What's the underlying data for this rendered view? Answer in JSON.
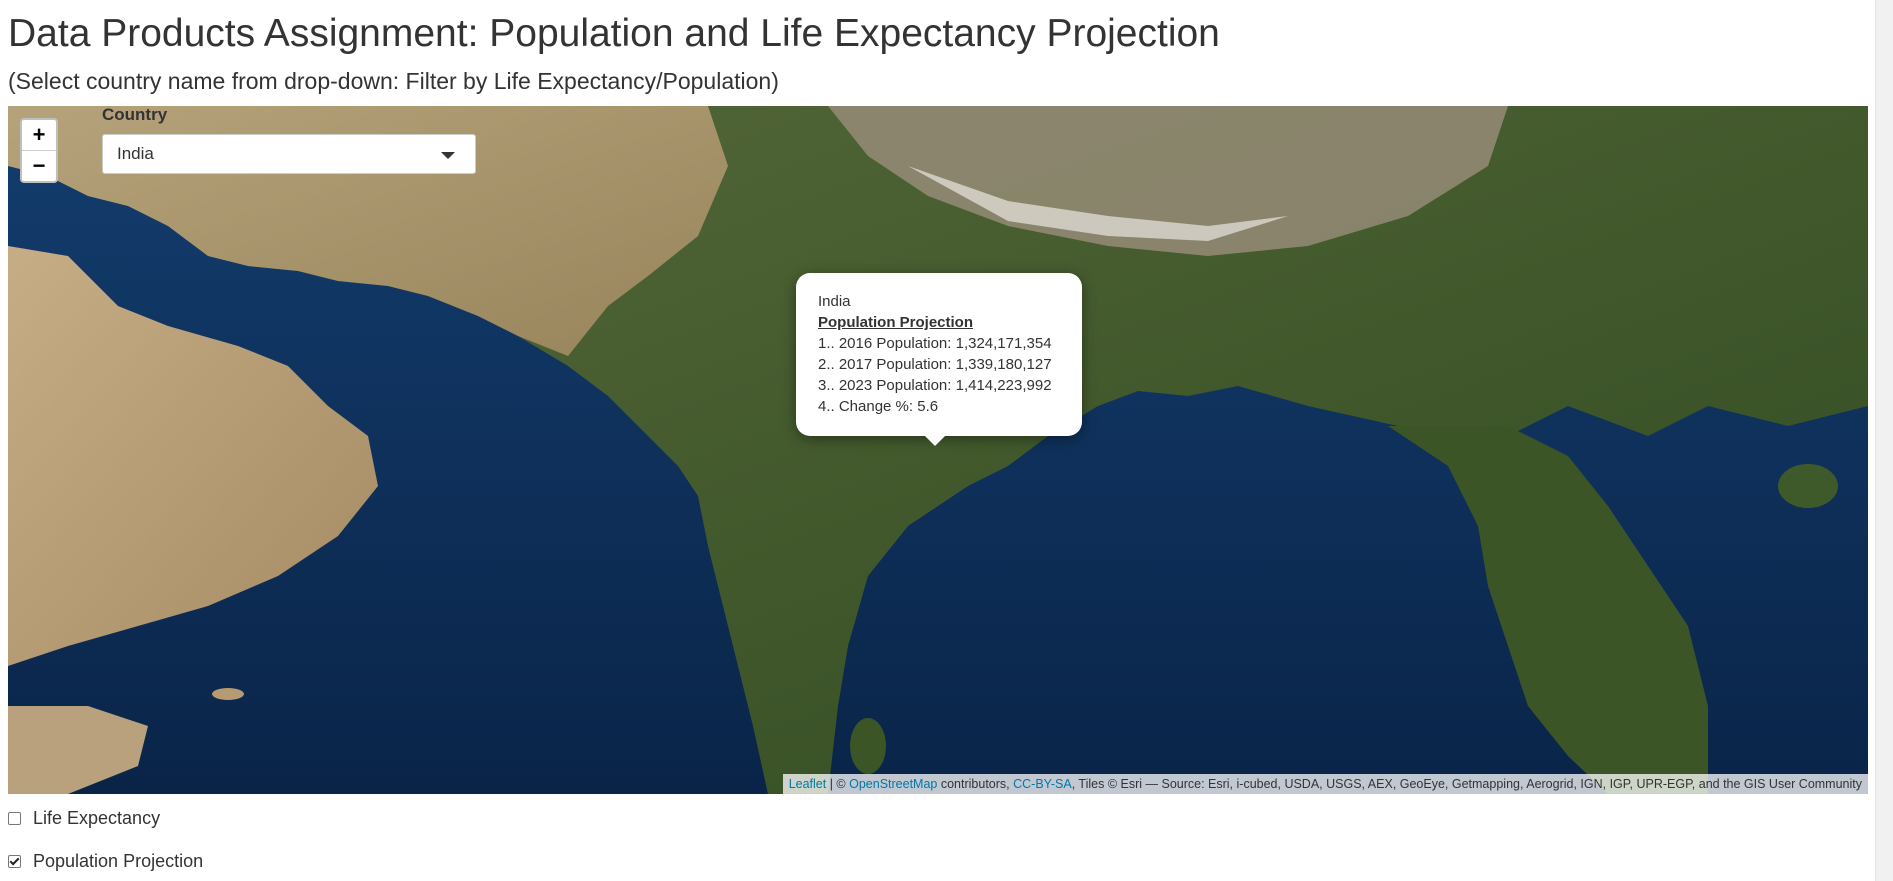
{
  "page": {
    "title": "Data Products Assignment: Population and Life Expectancy Projection",
    "subtitle": "(Select country name from drop-down: Filter by Life Expectancy/Population)"
  },
  "map": {
    "zoom_in": "+",
    "zoom_out": "−",
    "country_label": "Country",
    "country_selected": "India",
    "popup": {
      "country": "India",
      "heading": "Population Projection ",
      "lines": [
        "1.. 2016 Population: 1,324,171,354",
        "2.. 2017 Population: 1,339,180,127",
        "3.. 2023 Population: 1,414,223,992",
        "4.. Change %: 5.6"
      ]
    },
    "attribution": {
      "leaflet": "Leaflet",
      "sep": " | © ",
      "osm": "OpenStreetMap",
      "contributors": " contributors, ",
      "license": "CC-BY-SA",
      "tiles": ", Tiles © Esri — Source: Esri, i-cubed, USDA, USGS, AEX, GeoEye, Getmapping, Aerogrid, IGN, IGP, UPR-EGP, and the GIS User Community"
    },
    "colors": {
      "ocean": "#0d2f5c",
      "land_green": "#3f5a2a",
      "land_desert": "#b59a72",
      "mountain": "#8a8070",
      "link": "#0078a8"
    }
  },
  "filters": {
    "life_expectancy": {
      "label": "Life Expectancy",
      "checked": false
    },
    "population_projection": {
      "label": "Population Projection",
      "checked": true
    }
  }
}
